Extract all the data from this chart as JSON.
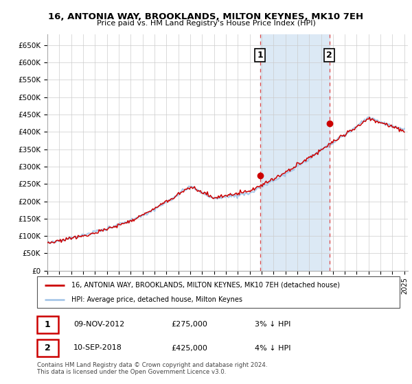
{
  "title": "16, ANTONIA WAY, BROOKLANDS, MILTON KEYNES, MK10 7EH",
  "subtitle": "Price paid vs. HM Land Registry's House Price Index (HPI)",
  "ylim": [
    0,
    680000
  ],
  "yticks": [
    0,
    50000,
    100000,
    150000,
    200000,
    250000,
    300000,
    350000,
    400000,
    450000,
    500000,
    550000,
    600000,
    650000
  ],
  "ytick_labels": [
    "£0",
    "£50K",
    "£100K",
    "£150K",
    "£200K",
    "£250K",
    "£300K",
    "£350K",
    "£400K",
    "£450K",
    "£500K",
    "£550K",
    "£600K",
    "£650K"
  ],
  "hpi_color": "#a8c8e8",
  "price_color": "#cc0000",
  "marker1_year": 2012.87,
  "marker1_value": 275000,
  "marker1_label": "1",
  "marker1_date_str": "09-NOV-2012",
  "marker1_price_str": "£275,000",
  "marker1_hpi_str": "3% ↓ HPI",
  "marker2_year": 2018.7,
  "marker2_value": 425000,
  "marker2_label": "2",
  "marker2_date_str": "10-SEP-2018",
  "marker2_price_str": "£425,000",
  "marker2_hpi_str": "4% ↓ HPI",
  "legend_line1": "16, ANTONIA WAY, BROOKLANDS, MILTON KEYNES, MK10 7EH (detached house)",
  "legend_line2": "HPI: Average price, detached house, Milton Keynes",
  "footnote": "Contains HM Land Registry data © Crown copyright and database right 2024.\nThis data is licensed under the Open Government Licence v3.0.",
  "background_color": "#ffffff",
  "plot_bg_color": "#ffffff",
  "grid_color": "#cccccc",
  "shade_color": "#dce9f5",
  "vline_color": "#dd4444"
}
